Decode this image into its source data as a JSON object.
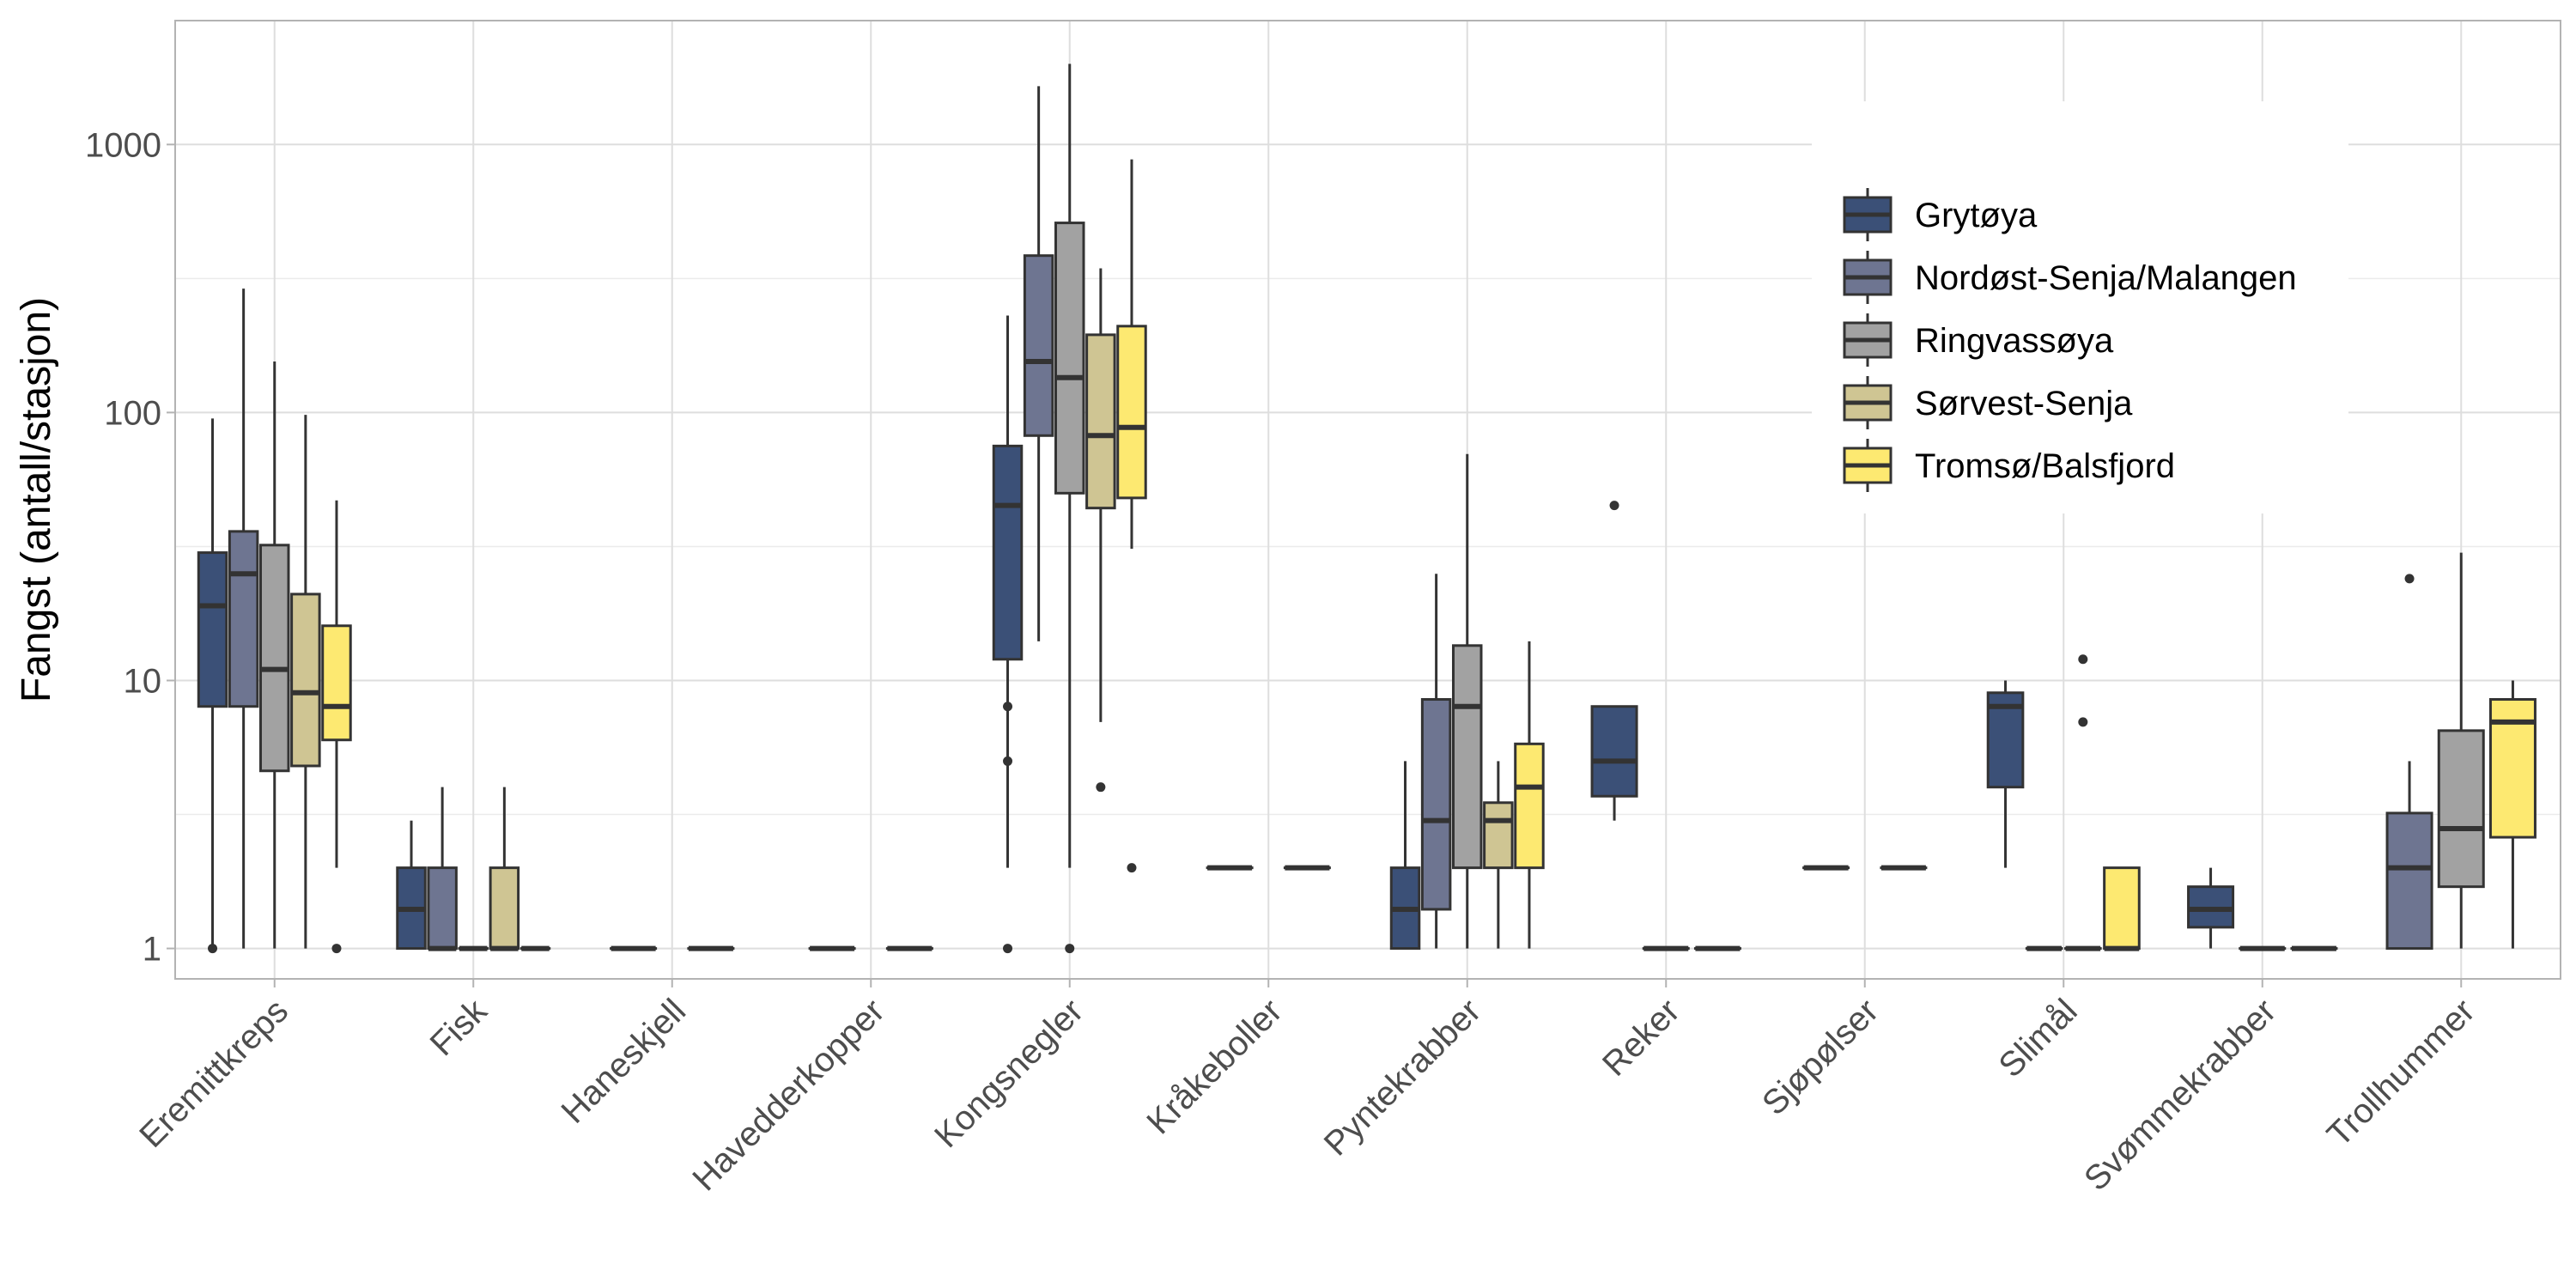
{
  "chart_data": {
    "type": "boxplot",
    "title": "",
    "xlabel": "",
    "ylabel": "Fangst (antall/stasjon)",
    "y_scale": "log10",
    "ylim": [
      0.77,
      2900
    ],
    "y_ticks": [
      1,
      10,
      100,
      1000
    ],
    "y_tick_labels": [
      "1",
      "10",
      "100",
      "1000"
    ],
    "categories": [
      "Eremittkreps",
      "Fisk",
      "Haneskjell",
      "Havedderkopper",
      "Kongsnegler",
      "Kråkeboller",
      "Pyntekrabber",
      "Reker",
      "Sjøpølser",
      "Slimål",
      "Svømmekrabber",
      "Trollhummer"
    ],
    "legend": {
      "position": "top-right",
      "entries": [
        "Grytøya",
        "Nordøst-Senja/Malangen",
        "Ringvassøya",
        "Sørvest-Senja",
        "Tromsø/Balsfjord"
      ]
    },
    "series": [
      {
        "name": "Grytøya",
        "color": "#3b5077"
      },
      {
        "name": "Nordøst-Senja/Malangen",
        "color": "#6e7591"
      },
      {
        "name": "Ringvassøya",
        "color": "#a2a2a2"
      },
      {
        "name": "Sørvest-Senja",
        "color": "#cfc593"
      },
      {
        "name": "Tromsø/Balsfjord",
        "color": "#fde971"
      }
    ],
    "groups": [
      {
        "category": "Eremittkreps",
        "boxes": [
          {
            "series": 0,
            "min": 1,
            "q1": 8,
            "median": 19,
            "q3": 30,
            "max": 95,
            "outliers": [
              1
            ]
          },
          {
            "series": 1,
            "min": 1,
            "q1": 8,
            "median": 25,
            "q3": 36,
            "max": 290,
            "outliers": []
          },
          {
            "series": 2,
            "min": 1,
            "q1": 4.6,
            "median": 11,
            "q3": 32,
            "max": 155,
            "outliers": []
          },
          {
            "series": 3,
            "min": 1,
            "q1": 4.8,
            "median": 9,
            "q3": 21,
            "max": 98,
            "outliers": []
          },
          {
            "series": 4,
            "min": 2,
            "q1": 6,
            "median": 8,
            "q3": 16,
            "max": 47,
            "outliers": [
              1
            ]
          }
        ]
      },
      {
        "category": "Fisk",
        "boxes": [
          {
            "series": 0,
            "min": 1,
            "q1": 1,
            "median": 1.4,
            "q3": 2,
            "max": 3,
            "outliers": []
          },
          {
            "series": 1,
            "min": 1,
            "q1": 1,
            "median": 1,
            "q3": 2,
            "max": 4,
            "outliers": []
          },
          {
            "series": 2,
            "min": 1,
            "q1": 1,
            "median": 1,
            "q3": 1,
            "max": 1,
            "outliers": []
          },
          {
            "series": 3,
            "min": 1,
            "q1": 1,
            "median": 1,
            "q3": 2,
            "max": 4,
            "outliers": []
          },
          {
            "series": 4,
            "min": 1,
            "q1": 1,
            "median": 1,
            "q3": 1,
            "max": 1,
            "outliers": []
          }
        ]
      },
      {
        "category": "Haneskjell",
        "boxes": [
          {
            "series": 0,
            "min": 1,
            "q1": 1,
            "median": 1,
            "q3": 1,
            "max": 1,
            "outliers": []
          },
          {
            "series": 1,
            "min": 1,
            "q1": 1,
            "median": 1,
            "q3": 1,
            "max": 1,
            "outliers": []
          }
        ]
      },
      {
        "category": "Havedderkopper",
        "boxes": [
          {
            "series": 0,
            "min": 1,
            "q1": 1,
            "median": 1,
            "q3": 1,
            "max": 1,
            "outliers": []
          },
          {
            "series": 1,
            "min": 1,
            "q1": 1,
            "median": 1,
            "q3": 1,
            "max": 1,
            "outliers": []
          }
        ]
      },
      {
        "category": "Kongsnegler",
        "boxes": [
          {
            "series": 0,
            "min": 2,
            "q1": 12,
            "median": 45,
            "q3": 75,
            "max": 230,
            "outliers": [
              8,
              5,
              1
            ]
          },
          {
            "series": 1,
            "min": 14,
            "q1": 82,
            "median": 155,
            "q3": 385,
            "max": 1650,
            "outliers": []
          },
          {
            "series": 2,
            "min": 2,
            "q1": 50,
            "median": 135,
            "q3": 510,
            "max": 2000,
            "outliers": [
              1
            ]
          },
          {
            "series": 3,
            "min": 7,
            "q1": 44,
            "median": 82,
            "q3": 195,
            "max": 345,
            "outliers": [
              4
            ]
          },
          {
            "series": 4,
            "min": 31,
            "q1": 48,
            "median": 88,
            "q3": 210,
            "max": 880,
            "outliers": [
              2
            ]
          }
        ]
      },
      {
        "category": "Kråkeboller",
        "boxes": [
          {
            "series": 0,
            "min": 2,
            "q1": 2,
            "median": 2,
            "q3": 2,
            "max": 2,
            "outliers": []
          },
          {
            "series": 1,
            "min": 2,
            "q1": 2,
            "median": 2,
            "q3": 2,
            "max": 2,
            "outliers": []
          }
        ]
      },
      {
        "category": "Pyntekrabber",
        "boxes": [
          {
            "series": 0,
            "min": 1,
            "q1": 1,
            "median": 1.4,
            "q3": 2,
            "max": 5,
            "outliers": []
          },
          {
            "series": 1,
            "min": 1,
            "q1": 1.4,
            "median": 3,
            "q3": 8.5,
            "max": 25,
            "outliers": []
          },
          {
            "series": 2,
            "min": 1,
            "q1": 2,
            "median": 8,
            "q3": 13.5,
            "max": 70,
            "outliers": []
          },
          {
            "series": 3,
            "min": 1,
            "q1": 2,
            "median": 3,
            "q3": 3.5,
            "max": 5,
            "outliers": []
          },
          {
            "series": 4,
            "min": 1,
            "q1": 2,
            "median": 4,
            "q3": 5.8,
            "max": 14,
            "outliers": []
          }
        ]
      },
      {
        "category": "Reker",
        "boxes": [
          {
            "series": 0,
            "min": 3,
            "q1": 3.7,
            "median": 5,
            "q3": 8,
            "max": 8,
            "outliers": [
              45
            ]
          },
          {
            "series": 1,
            "min": 1,
            "q1": 1,
            "median": 1,
            "q3": 1,
            "max": 1,
            "outliers": []
          },
          {
            "series": 2,
            "min": 1,
            "q1": 1,
            "median": 1,
            "q3": 1,
            "max": 1,
            "outliers": []
          }
        ]
      },
      {
        "category": "Sjøpølser",
        "boxes": [
          {
            "series": 0,
            "min": 2,
            "q1": 2,
            "median": 2,
            "q3": 2,
            "max": 2,
            "outliers": []
          },
          {
            "series": 1,
            "min": 2,
            "q1": 2,
            "median": 2,
            "q3": 2,
            "max": 2,
            "outliers": []
          }
        ]
      },
      {
        "category": "Slimål",
        "boxes": [
          {
            "series": 0,
            "min": 2,
            "q1": 4,
            "median": 8,
            "q3": 9,
            "max": 10,
            "outliers": []
          },
          {
            "series": 1,
            "min": 1,
            "q1": 1,
            "median": 1,
            "q3": 1,
            "max": 1,
            "outliers": []
          },
          {
            "series": 2,
            "min": 1,
            "q1": 1,
            "median": 1,
            "q3": 1,
            "max": 1,
            "outliers": [
              7,
              12
            ]
          },
          {
            "series": 4,
            "min": 1,
            "q1": 1,
            "median": 1,
            "q3": 2,
            "max": 2,
            "outliers": []
          }
        ]
      },
      {
        "category": "Svømmekrabber",
        "boxes": [
          {
            "series": 0,
            "min": 1,
            "q1": 1.2,
            "median": 1.4,
            "q3": 1.7,
            "max": 2,
            "outliers": []
          },
          {
            "series": 1,
            "min": 1,
            "q1": 1,
            "median": 1,
            "q3": 1,
            "max": 1,
            "outliers": []
          },
          {
            "series": 2,
            "min": 1,
            "q1": 1,
            "median": 1,
            "q3": 1,
            "max": 1,
            "outliers": []
          }
        ]
      },
      {
        "category": "Trollhummer",
        "boxes": [
          {
            "series": 1,
            "min": 1,
            "q1": 1,
            "median": 2,
            "q3": 3.2,
            "max": 5,
            "outliers": [
              24
            ]
          },
          {
            "series": 2,
            "min": 1,
            "q1": 1.7,
            "median": 2.8,
            "q3": 6.5,
            "max": 30,
            "outliers": []
          },
          {
            "series": 4,
            "min": 1,
            "q1": 2.6,
            "median": 7,
            "q3": 8.5,
            "max": 10,
            "outliers": []
          }
        ]
      }
    ]
  }
}
